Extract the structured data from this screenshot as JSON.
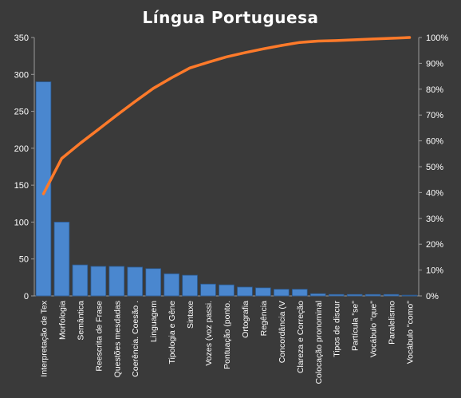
{
  "chart_data": {
    "type": "bar",
    "title": "Língua Portuguesa",
    "categories": [
      "Interpretação de Tex",
      "Morfologia",
      "Semântica",
      "Reescrita de Frase",
      "Questões mesdadas",
      "Coerência. Coesão .",
      "Linguagem",
      "Tipologia e Gêne",
      "Sintaxe",
      "Vozes (voz passi.",
      "Pontuação (ponto.",
      "Ortografia",
      "Regência",
      "Concordância (V",
      "Clareza e Correção",
      "Colocação pronominal",
      "Tipos de discur",
      "Partícula \"se\"",
      "Vocábulo \"que\"",
      "Paralelismo",
      "Vocábulo \"como\""
    ],
    "series": [
      {
        "type": "bar",
        "axis": "left",
        "values": [
          290,
          100,
          42,
          40,
          40,
          39,
          37,
          30,
          28,
          16,
          15,
          12,
          11,
          9,
          9,
          3,
          2,
          2,
          2,
          2,
          1
        ]
      },
      {
        "type": "line",
        "axis": "right",
        "values": [
          0.395,
          0.532,
          0.59,
          0.644,
          0.699,
          0.752,
          0.803,
          0.844,
          0.882,
          0.904,
          0.925,
          0.941,
          0.956,
          0.969,
          0.981,
          0.986,
          0.988,
          0.991,
          0.994,
          0.997,
          1.0
        ]
      }
    ],
    "ylim_left": [
      0,
      350
    ],
    "yticks_left": [
      "0",
      "50",
      "100",
      "150",
      "200",
      "250",
      "300",
      "350"
    ],
    "ylim_right": [
      0,
      1
    ],
    "yticks_right": [
      "0%",
      "10%",
      "20%",
      "30%",
      "40%",
      "50%",
      "60%",
      "70%",
      "80%",
      "90%",
      "100%"
    ],
    "colors": {
      "background": "#3a3a3a",
      "plot_background": "#3a3a3a",
      "bar": "#4a87cf",
      "line": "#ff7a2a",
      "text": "#ffffff",
      "axis": "#9a9a9a"
    },
    "legend": "none",
    "grid": false
  }
}
